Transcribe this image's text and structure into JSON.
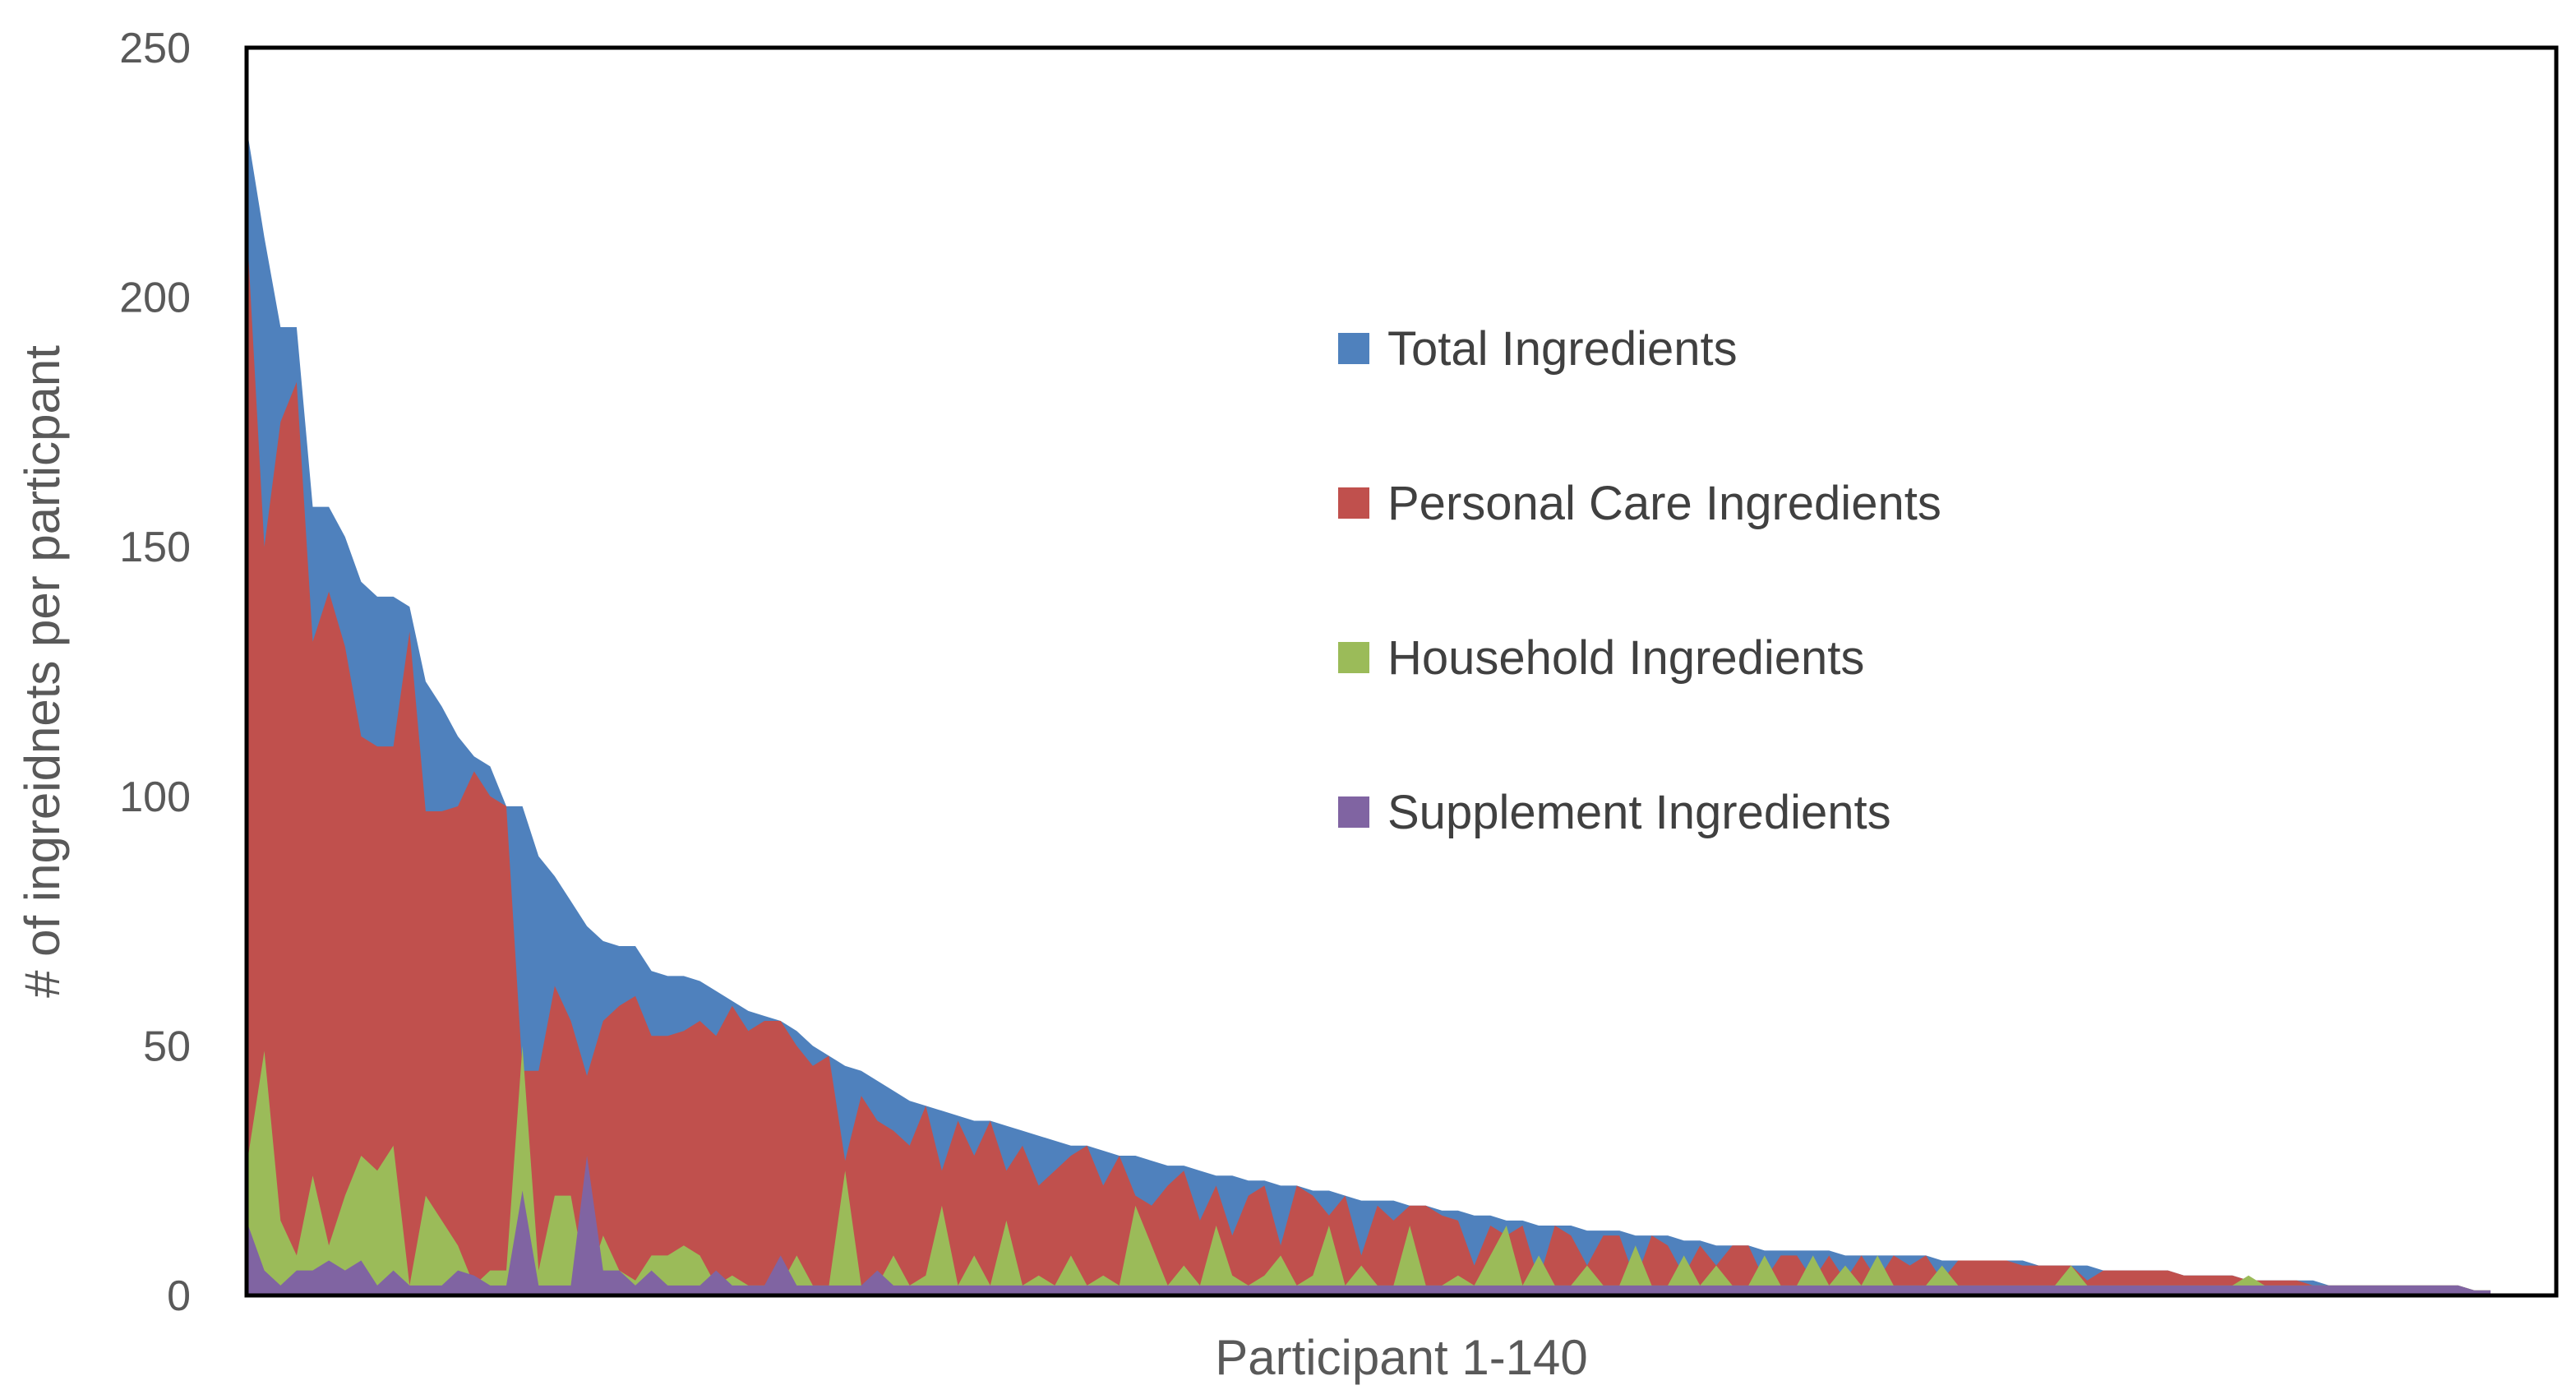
{
  "chart_data": {
    "type": "area",
    "title": "",
    "xlabel": "Participant 1-140",
    "ylabel": "# of ingreidnets per particpant",
    "ylim": [
      0,
      250
    ],
    "yticks": [
      0,
      50,
      100,
      150,
      200,
      250
    ],
    "x": [
      1,
      2,
      3,
      4,
      5,
      6,
      7,
      8,
      9,
      10,
      11,
      12,
      13,
      14,
      15,
      16,
      17,
      18,
      19,
      20,
      21,
      22,
      23,
      24,
      25,
      26,
      27,
      28,
      29,
      30,
      31,
      32,
      33,
      34,
      35,
      36,
      37,
      38,
      39,
      40,
      41,
      42,
      43,
      44,
      45,
      46,
      47,
      48,
      49,
      50,
      51,
      52,
      53,
      54,
      55,
      56,
      57,
      58,
      59,
      60,
      61,
      62,
      63,
      64,
      65,
      66,
      67,
      68,
      69,
      70,
      71,
      72,
      73,
      74,
      75,
      76,
      77,
      78,
      79,
      80,
      81,
      82,
      83,
      84,
      85,
      86,
      87,
      88,
      89,
      90,
      91,
      92,
      93,
      94,
      95,
      96,
      97,
      98,
      99,
      100,
      101,
      102,
      103,
      104,
      105,
      106,
      107,
      108,
      109,
      110,
      111,
      112,
      113,
      114,
      115,
      116,
      117,
      118,
      119,
      120,
      121,
      122,
      123,
      124,
      125,
      126,
      127,
      128,
      129,
      130,
      131,
      132,
      133,
      134,
      135,
      136,
      137,
      138,
      139,
      140
    ],
    "grid": false,
    "legend_position": "right-center",
    "series": [
      {
        "name": "Total Ingredients",
        "color": "#4F81BD",
        "values": [
          232,
          212,
          194,
          194,
          158,
          158,
          152,
          143,
          140,
          140,
          138,
          123,
          118,
          112,
          108,
          106,
          98,
          98,
          88,
          84,
          79,
          74,
          71,
          70,
          70,
          65,
          64,
          64,
          63,
          61,
          59,
          57,
          56,
          55,
          53,
          50,
          48,
          46,
          45,
          43,
          41,
          39,
          38,
          37,
          36,
          35,
          35,
          34,
          33,
          32,
          31,
          30,
          30,
          29,
          28,
          28,
          27,
          26,
          26,
          25,
          24,
          24,
          23,
          23,
          22,
          22,
          21,
          21,
          20,
          19,
          19,
          19,
          18,
          18,
          17,
          17,
          16,
          16,
          15,
          15,
          14,
          14,
          14,
          13,
          13,
          13,
          12,
          12,
          12,
          11,
          11,
          10,
          10,
          10,
          9,
          9,
          9,
          9,
          9,
          8,
          8,
          8,
          8,
          8,
          8,
          7,
          7,
          7,
          7,
          7,
          7,
          6,
          6,
          6,
          6,
          5,
          5,
          5,
          5,
          5,
          4,
          4,
          4,
          4,
          3,
          3,
          3,
          3,
          3,
          2,
          2,
          2,
          2,
          2,
          2,
          2,
          2,
          2,
          1,
          1
        ]
      },
      {
        "name": "Personal Care Ingredients",
        "color": "#C0504D",
        "values": [
          209,
          150,
          175,
          183,
          131,
          141,
          130,
          112,
          110,
          110,
          133,
          97,
          97,
          98,
          105,
          100,
          98,
          45,
          45,
          62,
          55,
          44,
          55,
          58,
          60,
          52,
          52,
          53,
          55,
          52,
          58,
          53,
          55,
          55,
          50,
          46,
          48,
          27,
          40,
          35,
          33,
          30,
          38,
          25,
          35,
          28,
          35,
          25,
          30,
          22,
          25,
          28,
          30,
          22,
          28,
          20,
          18,
          22,
          25,
          15,
          22,
          12,
          20,
          22,
          10,
          22,
          20,
          16,
          20,
          8,
          18,
          15,
          18,
          18,
          16,
          15,
          6,
          14,
          12,
          14,
          3,
          14,
          12,
          6,
          12,
          12,
          3,
          12,
          10,
          4,
          10,
          6,
          10,
          10,
          3,
          8,
          8,
          3,
          8,
          3,
          8,
          3,
          8,
          6,
          8,
          3,
          7,
          7,
          7,
          7,
          6,
          6,
          6,
          6,
          3,
          5,
          5,
          5,
          5,
          5,
          4,
          4,
          4,
          4,
          3,
          3,
          3,
          3,
          2,
          2,
          2,
          2,
          2,
          2,
          2,
          2,
          2,
          2,
          1,
          1
        ]
      },
      {
        "name": "Household Ingredients",
        "color": "#9BBB59",
        "values": [
          28,
          49,
          15,
          8,
          24,
          10,
          20,
          28,
          25,
          30,
          2,
          20,
          15,
          10,
          2,
          5,
          5,
          50,
          5,
          20,
          20,
          2,
          12,
          5,
          3,
          8,
          8,
          10,
          8,
          2,
          4,
          2,
          2,
          2,
          8,
          2,
          2,
          25,
          2,
          2,
          8,
          2,
          4,
          18,
          2,
          8,
          2,
          15,
          2,
          4,
          2,
          8,
          2,
          4,
          2,
          18,
          10,
          2,
          6,
          2,
          14,
          4,
          2,
          4,
          8,
          2,
          4,
          14,
          2,
          6,
          2,
          2,
          14,
          2,
          2,
          4,
          2,
          8,
          14,
          2,
          8,
          2,
          2,
          6,
          2,
          2,
          10,
          2,
          2,
          8,
          2,
          6,
          2,
          2,
          8,
          2,
          2,
          8,
          2,
          6,
          2,
          8,
          2,
          2,
          2,
          6,
          2,
          2,
          2,
          2,
          2,
          2,
          2,
          6,
          2,
          2,
          2,
          2,
          2,
          2,
          2,
          2,
          2,
          2,
          4,
          2,
          2,
          2,
          2,
          2,
          2,
          2,
          2,
          2,
          2,
          2,
          2,
          2,
          1,
          1
        ]
      },
      {
        "name": "Supplement Ingredients",
        "color": "#8064A2",
        "values": [
          14,
          5,
          2,
          5,
          5,
          7,
          5,
          7,
          2,
          5,
          2,
          2,
          2,
          5,
          4,
          2,
          2,
          21,
          2,
          2,
          2,
          28,
          5,
          5,
          2,
          5,
          2,
          2,
          2,
          5,
          2,
          2,
          2,
          8,
          2,
          2,
          2,
          2,
          2,
          5,
          2,
          2,
          2,
          2,
          2,
          2,
          2,
          2,
          2,
          2,
          2,
          2,
          2,
          2,
          2,
          2,
          2,
          2,
          2,
          2,
          2,
          2,
          2,
          2,
          2,
          2,
          2,
          2,
          2,
          2,
          2,
          2,
          2,
          2,
          2,
          2,
          2,
          2,
          2,
          2,
          2,
          2,
          2,
          2,
          2,
          2,
          2,
          2,
          2,
          2,
          2,
          2,
          2,
          2,
          2,
          2,
          2,
          2,
          2,
          2,
          2,
          2,
          2,
          2,
          2,
          2,
          2,
          2,
          2,
          2,
          2,
          2,
          2,
          2,
          2,
          2,
          2,
          2,
          2,
          2,
          2,
          2,
          2,
          2,
          2,
          2,
          2,
          2,
          2,
          2,
          2,
          2,
          2,
          2,
          2,
          2,
          2,
          2,
          1,
          1
        ]
      }
    ]
  }
}
